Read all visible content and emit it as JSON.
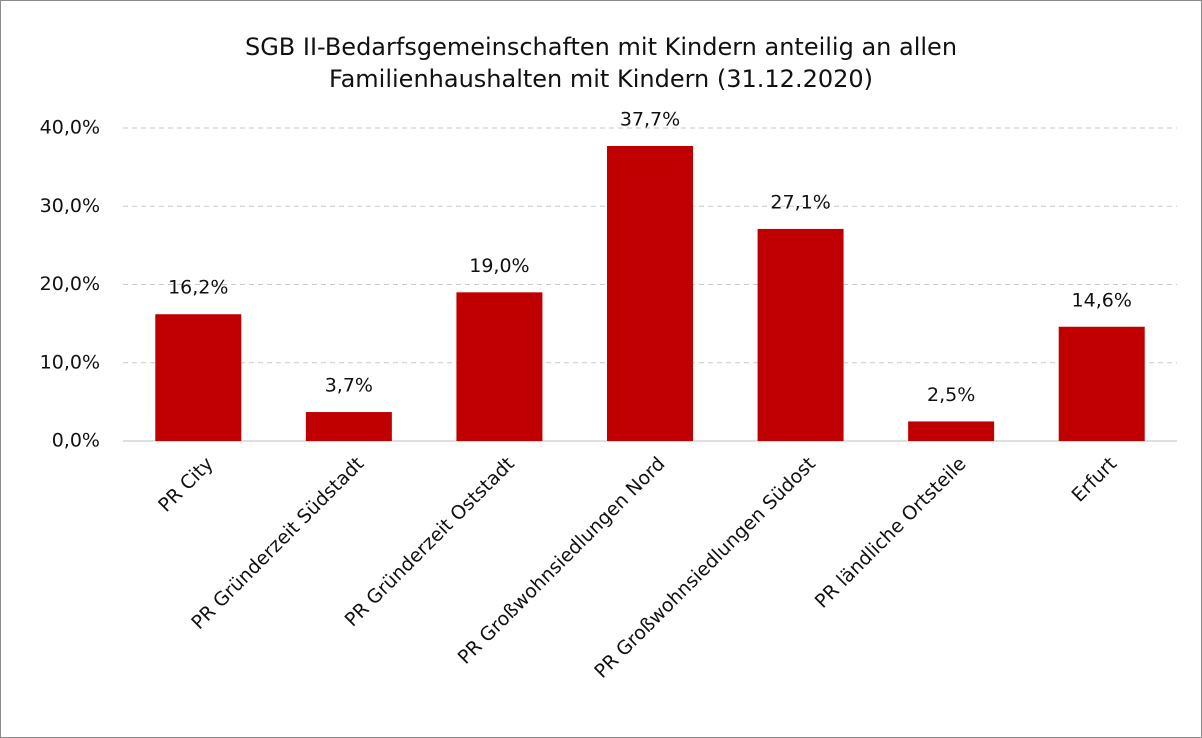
{
  "chart_data": {
    "type": "bar",
    "title": [
      "SGB II-Bedarfsgemeinschaften mit Kindern anteilig an allen",
      "Familienhaushalten mit Kindern (31.12.2020)"
    ],
    "categories": [
      "PR City",
      "PR Gründerzeit Südstadt",
      "PR Gründerzeit Oststadt",
      "PR Großwohnsiedlungen Nord",
      "PR Großwohnsiedlungen Südost",
      "PR ländliche Ortsteile",
      "Erfurt"
    ],
    "values": [
      16.2,
      3.7,
      19.0,
      37.7,
      27.1,
      2.5,
      14.6
    ],
    "value_labels": [
      "16,2%",
      "3,7%",
      "19,0%",
      "37,7%",
      "27,1%",
      "2,5%",
      "14,6%"
    ],
    "color": "#c00000",
    "ylim": [
      0,
      40
    ],
    "yticks": [
      {
        "value": 0,
        "label": "0,0%"
      },
      {
        "value": 10,
        "label": "10,0%"
      },
      {
        "value": 20,
        "label": "20,0%"
      },
      {
        "value": 30,
        "label": "30,0%"
      },
      {
        "value": 40,
        "label": "40,0%"
      }
    ],
    "grid": true
  }
}
